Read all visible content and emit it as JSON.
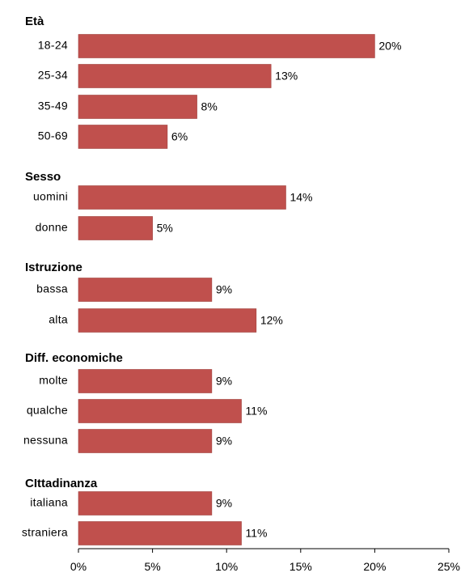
{
  "chart_data": {
    "type": "bar",
    "orientation": "horizontal",
    "bar_color": "#C0504D",
    "xlim": [
      0,
      25
    ],
    "xticks": [
      0,
      5,
      10,
      15,
      20,
      25
    ],
    "tick_labels": [
      "0%",
      "5%",
      "10%",
      "15%",
      "20%",
      "25%"
    ],
    "grid": false,
    "groups": [
      {
        "title": "Età",
        "items": [
          {
            "label": "18-24",
            "value": 20,
            "value_label": "20%"
          },
          {
            "label": "25-34",
            "value": 13,
            "value_label": "13%"
          },
          {
            "label": "35-49",
            "value": 8,
            "value_label": "8%"
          },
          {
            "label": "50-69",
            "value": 6,
            "value_label": "6%"
          }
        ]
      },
      {
        "title": "Sesso",
        "items": [
          {
            "label": "uomini",
            "value": 14,
            "value_label": "14%"
          },
          {
            "label": "donne",
            "value": 5,
            "value_label": "5%"
          }
        ]
      },
      {
        "title": "Istruzione",
        "items": [
          {
            "label": "bassa",
            "value": 9,
            "value_label": "9%"
          },
          {
            "label": "alta",
            "value": 12,
            "value_label": "12%"
          }
        ]
      },
      {
        "title": "Diff. economiche",
        "items": [
          {
            "label": "molte",
            "value": 9,
            "value_label": "9%"
          },
          {
            "label": "qualche",
            "value": 11,
            "value_label": "11%"
          },
          {
            "label": "nessuna",
            "value": 9,
            "value_label": "9%"
          }
        ]
      },
      {
        "title": "CIttadinanza",
        "items": [
          {
            "label": "italiana",
            "value": 9,
            "value_label": "9%"
          },
          {
            "label": "straniera",
            "value": 11,
            "value_label": "11%"
          }
        ]
      }
    ]
  }
}
